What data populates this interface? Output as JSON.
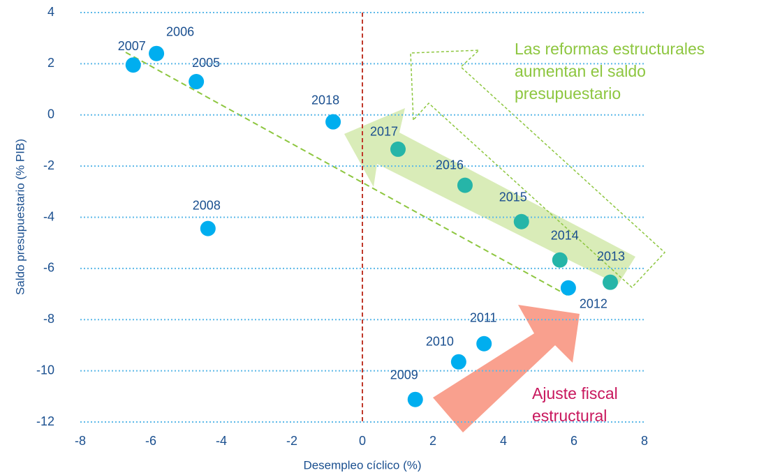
{
  "chart_data": {
    "type": "scatter",
    "x_label": "Desempleo cíclico (%)",
    "y_label": "Saldo presupuestario (% PIB)",
    "x": [
      -6.5,
      -5.84,
      -4.71,
      -0.83,
      -4.38,
      1.01,
      2.91,
      4.51,
      5.6,
      7.03,
      5.84,
      3.45,
      2.73,
      1.5
    ],
    "values": [
      1.95,
      2.4,
      1.3,
      -0.27,
      -4.44,
      -1.34,
      -2.75,
      -4.17,
      -5.67,
      -6.54,
      -6.76,
      -8.94,
      -9.65,
      -11.12
    ],
    "labels": [
      "2007",
      "2006",
      "2005",
      "2018",
      "2008",
      "2017",
      "2016",
      "2015",
      "2014",
      "2013",
      "2012",
      "2011",
      "2010",
      "2009"
    ],
    "point_colors": [
      "#00aeef",
      "#00aeef",
      "#00aeef",
      "#00aeef",
      "#00aeef",
      "#26b5a8",
      "#26b5a8",
      "#26b5a8",
      "#26b5a8",
      "#26b5a8",
      "#00aeef",
      "#00aeef",
      "#00aeef",
      "#00aeef"
    ],
    "xlim": [
      -8,
      8
    ],
    "xticks": [
      -8,
      -6,
      -4,
      -2,
      0,
      2,
      4,
      6,
      8
    ],
    "ylim": [
      -12,
      4
    ],
    "yticks": [
      -12,
      -10,
      -8,
      -6,
      -4,
      -2,
      0,
      2,
      4
    ],
    "grid": true,
    "reference_line_x": 0,
    "annotations": [
      {
        "lines": [
          "Las reformas estructurales",
          "aumentan el saldo",
          "presupuestario"
        ],
        "color": "#8dc63f"
      },
      {
        "lines": [
          "Ajuste fiscal",
          "estructural"
        ],
        "color": "#c8175d"
      }
    ]
  }
}
